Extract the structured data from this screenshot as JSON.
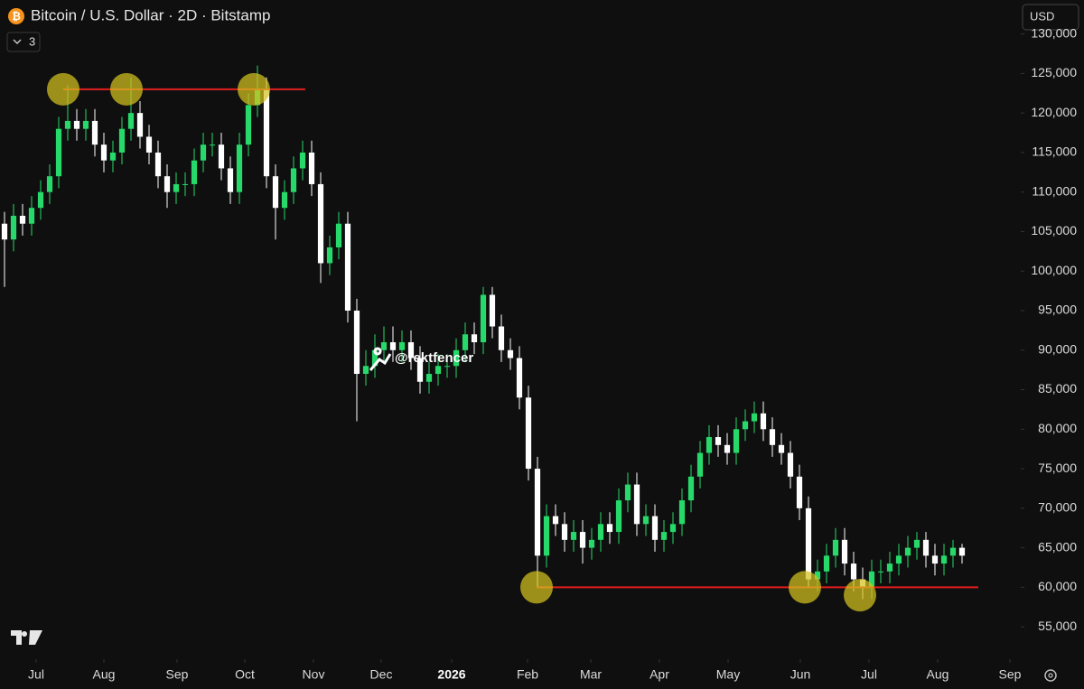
{
  "chart_data": {
    "type": "candlestick",
    "title": "Bitcoin / U.S. Dollar · 2D · Bitstamp",
    "indicator_count": "3",
    "currency": "USD",
    "watermark": "@rektfencer",
    "up_color": "#26d96a",
    "down_color": "#ffffff",
    "grid": false,
    "xlim": [
      -0.5,
      112.5
    ],
    "xticks": [
      {
        "value": 3.5,
        "label": "Jul"
      },
      {
        "value": 11,
        "label": "Aug"
      },
      {
        "value": 19.1,
        "label": "Sep"
      },
      {
        "value": 26.6,
        "label": "Oct"
      },
      {
        "value": 34.2,
        "label": "Nov"
      },
      {
        "value": 41.7,
        "label": "Dec"
      },
      {
        "value": 49.5,
        "label": "2026"
      },
      {
        "value": 57.9,
        "label": "Feb"
      },
      {
        "value": 64.9,
        "label": "Mar"
      },
      {
        "value": 72.5,
        "label": "Apr"
      },
      {
        "value": 80.1,
        "label": "May"
      },
      {
        "value": 88.1,
        "label": "Jun"
      },
      {
        "value": 95.7,
        "label": "Jul"
      },
      {
        "value": 103.3,
        "label": "Aug"
      },
      {
        "value": 111.3,
        "label": "Sep"
      }
    ],
    "ylim": [
      50900,
      134300
    ],
    "yticks": [
      {
        "value": 55000,
        "label": "55,000"
      },
      {
        "value": 60000,
        "label": "60,000"
      },
      {
        "value": 65000,
        "label": "65,000"
      },
      {
        "value": 70000,
        "label": "70,000"
      },
      {
        "value": 75000,
        "label": "75,000"
      },
      {
        "value": 80000,
        "label": "80,000"
      },
      {
        "value": 85000,
        "label": "85,000"
      },
      {
        "value": 90000,
        "label": "90,000"
      },
      {
        "value": 95000,
        "label": "95,000"
      },
      {
        "value": 100000,
        "label": "100,000"
      },
      {
        "value": 105000,
        "label": "105,000"
      },
      {
        "value": 110000,
        "label": "110,000"
      },
      {
        "value": 115000,
        "label": "115,000"
      },
      {
        "value": 120000,
        "label": "120,000"
      },
      {
        "value": 125000,
        "label": "125,000"
      },
      {
        "value": 130000,
        "label": "130,000"
      }
    ],
    "open": [
      106000,
      104000,
      107000,
      106000,
      108000,
      110000,
      112000,
      118000,
      119000,
      118000,
      119000,
      116000,
      114000,
      115000,
      118000,
      120000,
      117000,
      115000,
      112000,
      110000,
      111000,
      111000,
      114000,
      116000,
      116000,
      113000,
      110000,
      116000,
      121000,
      123000,
      112000,
      108000,
      110000,
      113000,
      115000,
      111000,
      101000,
      103000,
      106000,
      95000,
      87000,
      88000,
      90000,
      91000,
      90000,
      91000,
      89000,
      86000,
      87000,
      88000,
      88000,
      90000,
      92000,
      91000,
      97000,
      93000,
      90000,
      89000,
      84000,
      75000,
      64000,
      69000,
      68000,
      66000,
      67000,
      65000,
      66000,
      68000,
      67000,
      71000,
      73000,
      68000,
      69000,
      66000,
      67000,
      68000,
      71000,
      74000,
      77000,
      79000,
      78000,
      77000,
      80000,
      81000,
      82000,
      80000,
      78000,
      77000,
      74000,
      70000,
      61000,
      62000,
      64000,
      66000,
      63000,
      61000,
      60000,
      62000,
      62000,
      63000,
      64000,
      65000,
      66000,
      64000,
      63000,
      64000,
      65000
    ],
    "high": [
      107500,
      108500,
      108500,
      109500,
      111500,
      113500,
      119500,
      123500,
      120500,
      120500,
      120500,
      117500,
      116500,
      119500,
      124500,
      121500,
      118500,
      116500,
      113500,
      112500,
      112500,
      115500,
      117500,
      117500,
      117500,
      114500,
      117500,
      122500,
      126000,
      124500,
      113500,
      111500,
      114500,
      116500,
      116500,
      112500,
      104500,
      107500,
      107500,
      96500,
      90000,
      92000,
      93000,
      93000,
      92500,
      92500,
      90500,
      88500,
      89500,
      89500,
      91500,
      93500,
      93500,
      98000,
      98000,
      94500,
      91500,
      90500,
      85500,
      76500,
      70500,
      70500,
      69500,
      68500,
      68500,
      67500,
      69500,
      69500,
      72500,
      74500,
      74500,
      70500,
      70500,
      68500,
      69500,
      72500,
      75500,
      78500,
      80500,
      80500,
      79500,
      81500,
      82500,
      83500,
      83500,
      81500,
      79500,
      78500,
      75500,
      71500,
      63500,
      65500,
      67500,
      67500,
      64500,
      62500,
      63500,
      63500,
      64500,
      65500,
      66500,
      67000,
      67000,
      65500,
      65500,
      66000,
      65500
    ],
    "low": [
      98000,
      102500,
      104500,
      104500,
      106500,
      108500,
      110500,
      116500,
      116500,
      116500,
      114500,
      112500,
      112500,
      113500,
      116500,
      115500,
      113500,
      110500,
      108000,
      108500,
      109500,
      109500,
      112500,
      114500,
      111500,
      108500,
      108500,
      114500,
      119500,
      110500,
      104000,
      106500,
      108500,
      111500,
      109500,
      98500,
      99500,
      101500,
      93500,
      81000,
      85500,
      86500,
      88500,
      88500,
      88500,
      87500,
      84500,
      84500,
      85500,
      86500,
      86500,
      88500,
      89500,
      89500,
      91500,
      88500,
      87500,
      82500,
      73500,
      60000,
      62500,
      66500,
      64500,
      64500,
      63000,
      63500,
      64500,
      65500,
      65500,
      69500,
      66500,
      66500,
      64500,
      64500,
      65500,
      66500,
      69500,
      72500,
      75500,
      76500,
      75500,
      75500,
      78500,
      79500,
      78500,
      76500,
      75500,
      72500,
      68500,
      60000,
      59500,
      60500,
      62500,
      61500,
      59500,
      58500,
      58500,
      60500,
      60500,
      61500,
      62500,
      63500,
      62500,
      61500,
      61500,
      62500,
      63000
    ],
    "close": [
      104000,
      107000,
      106000,
      108000,
      110000,
      112000,
      118000,
      119000,
      118000,
      119000,
      116000,
      114000,
      115000,
      118000,
      120000,
      117000,
      115000,
      112000,
      110000,
      111000,
      111000,
      114000,
      116000,
      116000,
      113000,
      110000,
      116000,
      121000,
      123000,
      112000,
      108000,
      110000,
      113000,
      115000,
      111000,
      101000,
      103000,
      106000,
      95000,
      87000,
      88000,
      90000,
      91000,
      90000,
      91000,
      89000,
      86000,
      87000,
      88000,
      88000,
      90000,
      92000,
      91000,
      97000,
      93000,
      90000,
      89000,
      84000,
      75000,
      64000,
      69000,
      68000,
      66000,
      67000,
      65000,
      66000,
      68000,
      67000,
      71000,
      73000,
      68000,
      69000,
      66000,
      67000,
      68000,
      71000,
      74000,
      77000,
      79000,
      78000,
      77000,
      80000,
      81000,
      82000,
      80000,
      78000,
      77000,
      74000,
      70000,
      61000,
      62000,
      64000,
      66000,
      63000,
      61000,
      60000,
      62000,
      62000,
      63000,
      64000,
      65000,
      66000,
      64000,
      63000,
      64000,
      65000,
      64000
    ],
    "levels": [
      {
        "value": 123000,
        "from": 6.5,
        "to": 33.3,
        "color": "#e01e1e"
      },
      {
        "value": 60000,
        "from": 58.9,
        "to": 107.8,
        "color": "#e01e1e"
      }
    ],
    "touch_points": [
      {
        "x": 6.5,
        "y": 123000
      },
      {
        "x": 13.5,
        "y": 123000
      },
      {
        "x": 27.6,
        "y": 123000
      },
      {
        "x": 58.9,
        "y": 60000
      },
      {
        "x": 88.6,
        "y": 60000
      },
      {
        "x": 94.7,
        "y": 59000
      }
    ],
    "touch_color": "#d4c21f"
  }
}
